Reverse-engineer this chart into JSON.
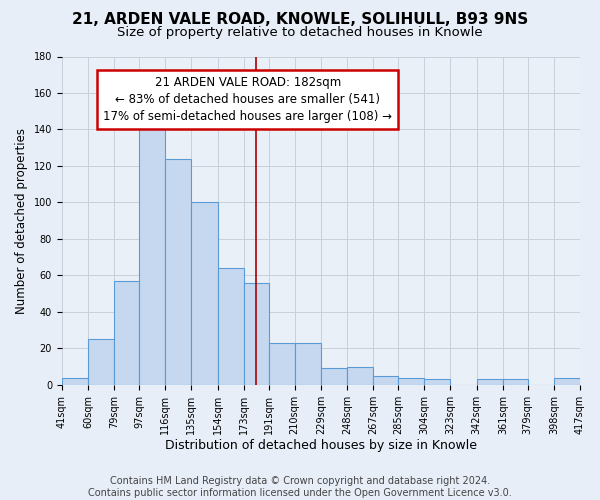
{
  "title": "21, ARDEN VALE ROAD, KNOWLE, SOLIHULL, B93 9NS",
  "subtitle": "Size of property relative to detached houses in Knowle",
  "xlabel": "Distribution of detached houses by size in Knowle",
  "ylabel": "Number of detached properties",
  "bar_left_edges": [
    41,
    60,
    79,
    97,
    116,
    135,
    154,
    173,
    191,
    210,
    229,
    248,
    267,
    285,
    304,
    323,
    342,
    361,
    379,
    398
  ],
  "bar_heights": [
    4,
    25,
    57,
    146,
    124,
    100,
    64,
    56,
    23,
    23,
    9,
    10,
    5,
    4,
    3,
    0,
    3,
    3,
    0,
    4
  ],
  "bar_widths": [
    19,
    19,
    18,
    19,
    19,
    19,
    19,
    18,
    19,
    19,
    19,
    19,
    18,
    19,
    19,
    19,
    19,
    18,
    19,
    19
  ],
  "tick_labels": [
    "41sqm",
    "60sqm",
    "79sqm",
    "97sqm",
    "116sqm",
    "135sqm",
    "154sqm",
    "173sqm",
    "191sqm",
    "210sqm",
    "229sqm",
    "248sqm",
    "267sqm",
    "285sqm",
    "304sqm",
    "323sqm",
    "342sqm",
    "361sqm",
    "379sqm",
    "398sqm",
    "417sqm"
  ],
  "tick_positions": [
    41,
    60,
    79,
    97,
    116,
    135,
    154,
    173,
    191,
    210,
    229,
    248,
    267,
    285,
    304,
    323,
    342,
    361,
    379,
    398,
    417
  ],
  "bar_color": "#c5d8f0",
  "bar_edge_color": "#5b9bd5",
  "reference_line_x": 182,
  "reference_line_color": "#aa0000",
  "annotation_line1": "21 ARDEN VALE ROAD: 182sqm",
  "annotation_line2": "← 83% of detached houses are smaller (541)",
  "annotation_line3": "17% of semi-detached houses are larger (108) →",
  "annotation_box_color": "#cc0000",
  "annotation_fill_color": "#ffffff",
  "ylim": [
    0,
    180
  ],
  "xlim": [
    41,
    417
  ],
  "yticks": [
    0,
    20,
    40,
    60,
    80,
    100,
    120,
    140,
    160,
    180
  ],
  "footer_text": "Contains HM Land Registry data © Crown copyright and database right 2024.\nContains public sector information licensed under the Open Government Licence v3.0.",
  "title_fontsize": 11,
  "subtitle_fontsize": 9.5,
  "xlabel_fontsize": 9,
  "ylabel_fontsize": 8.5,
  "tick_fontsize": 7,
  "annotation_fontsize": 8.5,
  "footer_fontsize": 7,
  "bg_color": "#e8eef8",
  "plot_bg_color": "#eaf0f8",
  "grid_color": "#c8d0dc"
}
